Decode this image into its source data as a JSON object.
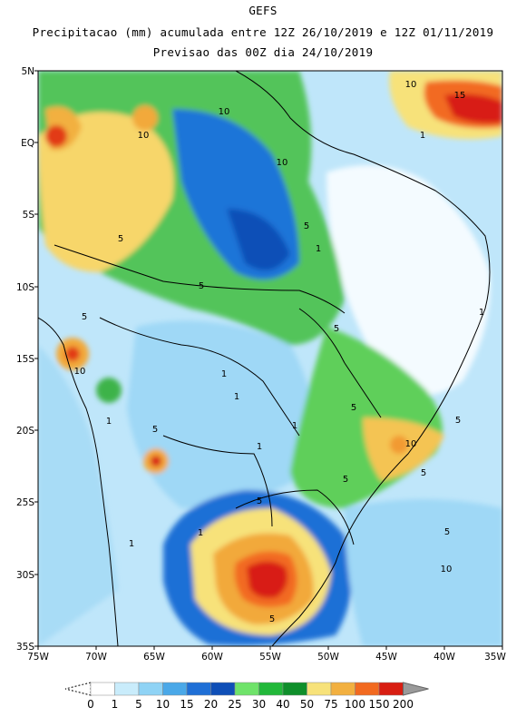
{
  "header": {
    "model": "GEFS",
    "subtitle": "Precipitacao (mm) acumulada entre 12Z 26/10/2019 e 12Z 01/11/2019",
    "forecast": "Previsao das 00Z dia 24/10/2019"
  },
  "map": {
    "lat_labels": [
      "5N",
      "EQ",
      "5S",
      "10S",
      "15S",
      "20S",
      "25S",
      "30S",
      "35S"
    ],
    "lon_labels": [
      "75W",
      "70W",
      "65W",
      "60W",
      "55W",
      "50W",
      "45W",
      "40W",
      "35W"
    ],
    "contour_labels": [
      "10",
      "15",
      "1",
      "10",
      "10",
      "10",
      "5",
      "5",
      "1",
      "5",
      "5",
      "5",
      "10",
      "1",
      "1",
      "1",
      "1",
      "5",
      "5",
      "1",
      "5",
      "10",
      "5",
      "1",
      "5",
      "5",
      "1",
      "5",
      "10",
      "5",
      "1"
    ]
  },
  "legend": {
    "levels": [
      "0",
      "1",
      "5",
      "10",
      "15",
      "20",
      "25",
      "30",
      "40",
      "50",
      "75",
      "100",
      "150",
      "200"
    ],
    "colors": [
      "#ffffff",
      "#c9ecfb",
      "#8fd3f5",
      "#4aa8e8",
      "#1f6fd6",
      "#0f4fb7",
      "#6fe36a",
      "#22b83a",
      "#0f8f2b",
      "#f7e27a",
      "#f2b040",
      "#f26a20",
      "#d81e12",
      "#f08a8a"
    ]
  }
}
